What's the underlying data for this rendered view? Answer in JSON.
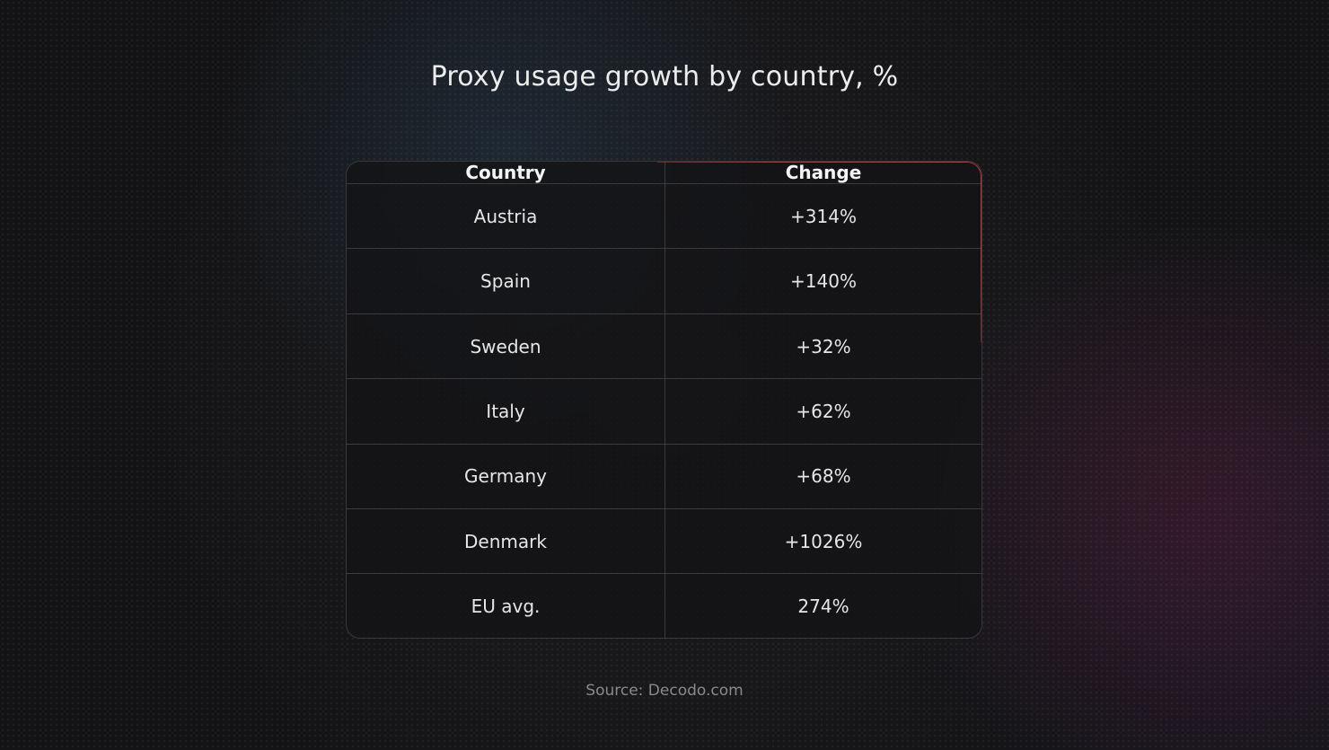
{
  "page": {
    "title": "Proxy usage growth by country, %",
    "source": "Source: Decodo.com"
  },
  "table": {
    "headers": [
      "Country",
      "Change"
    ],
    "rows": [
      [
        "Austria",
        "+314%"
      ],
      [
        "Spain",
        "+140%"
      ],
      [
        "Sweden",
        "+32%"
      ],
      [
        "Italy",
        "+62%"
      ],
      [
        "Germany",
        "+68%"
      ],
      [
        "Denmark",
        "+1026%"
      ],
      [
        "EU avg.",
        "274%"
      ]
    ]
  },
  "colors": {
    "background": "#141416",
    "accent_border": "#c4333d",
    "text": "#e6e6e6"
  },
  "chart_data": {
    "type": "table",
    "title": "Proxy usage growth by country, %",
    "columns": [
      "Country",
      "Change"
    ],
    "categories": [
      "Austria",
      "Spain",
      "Sweden",
      "Italy",
      "Germany",
      "Denmark",
      "EU avg."
    ],
    "values": [
      314,
      140,
      32,
      62,
      68,
      1026,
      274
    ]
  }
}
